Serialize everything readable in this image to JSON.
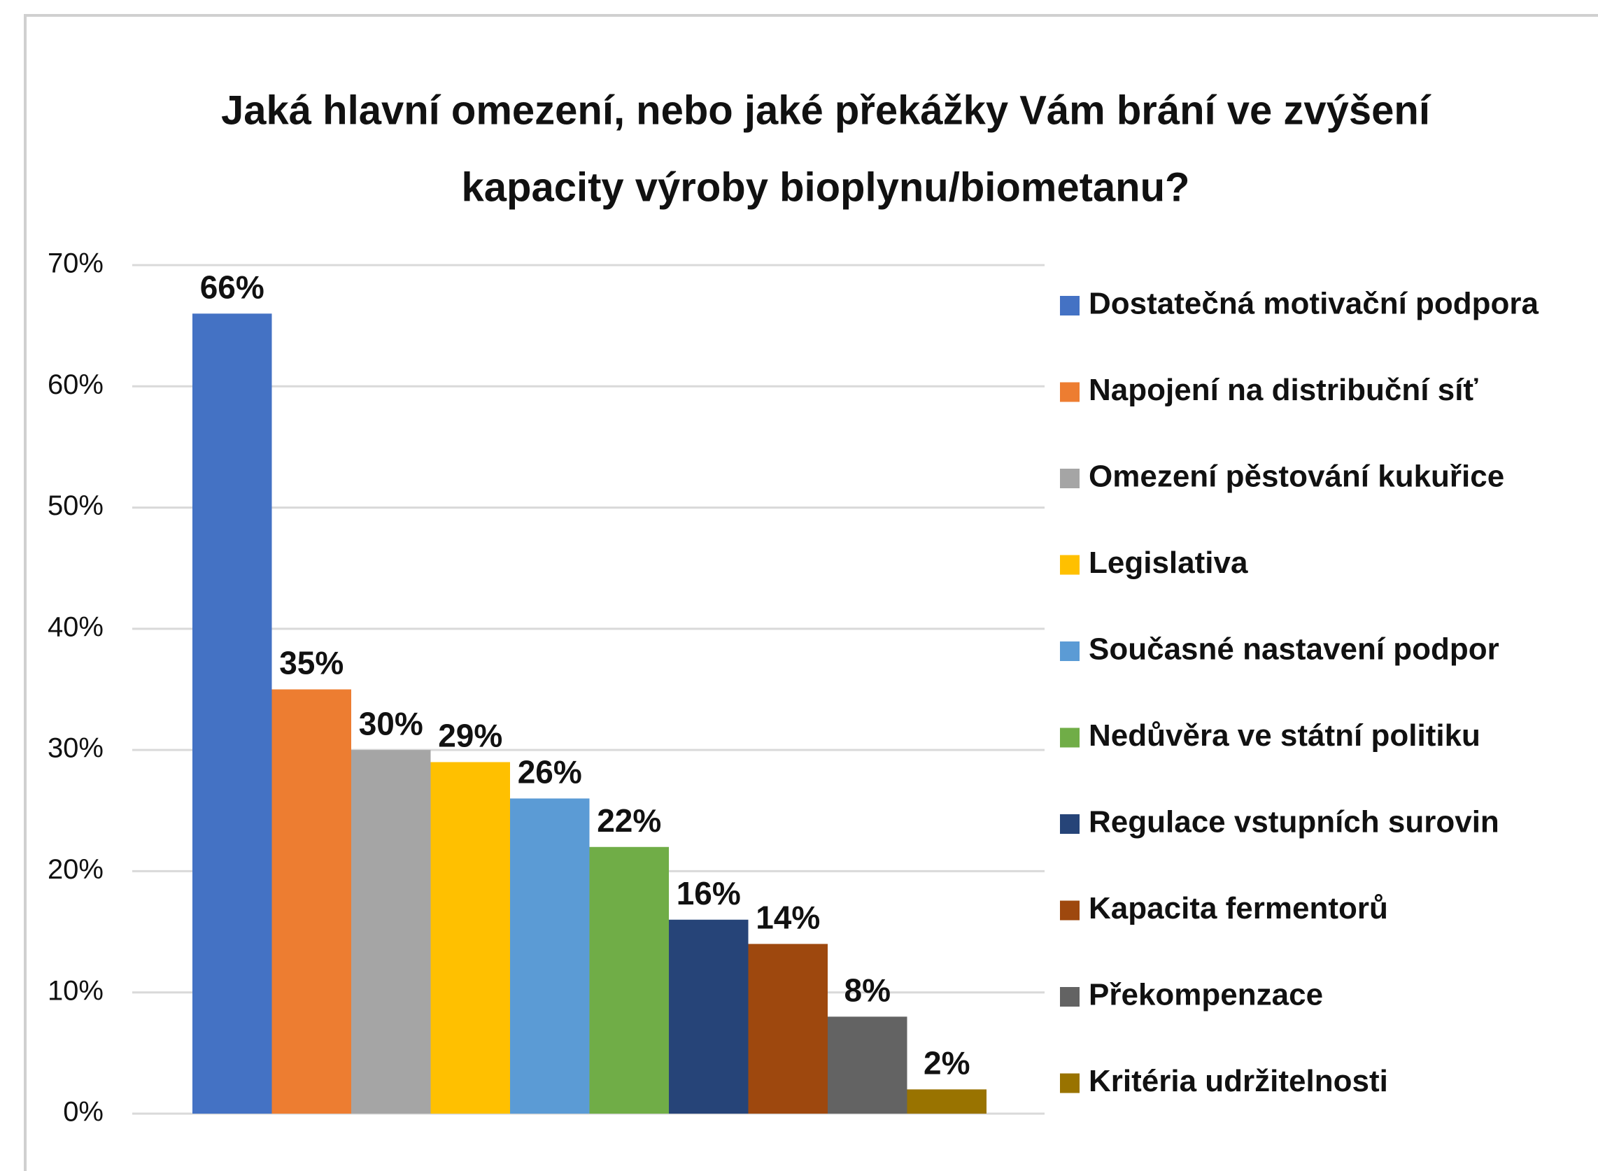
{
  "chart_data": {
    "type": "bar",
    "title": [
      "Jaká hlavní omezení, nebo jaké překážky Vám brání ve zvýšení",
      "kapacity výroby bioplynu/biometanu?"
    ],
    "ylim": [
      0,
      70
    ],
    "yticks": [
      {
        "value": 0,
        "label": "0%"
      },
      {
        "value": 10,
        "label": "10%"
      },
      {
        "value": 20,
        "label": "20%"
      },
      {
        "value": 30,
        "label": "30%"
      },
      {
        "value": 40,
        "label": "40%"
      },
      {
        "value": 50,
        "label": "50%"
      },
      {
        "value": 60,
        "label": "60%"
      },
      {
        "value": 70,
        "label": "70%"
      }
    ],
    "grid": true,
    "legend": "right",
    "series": [
      {
        "name": "Dostatečná motivační podpora",
        "color": "#4472c4",
        "values": [
          66
        ],
        "value_labels": [
          "66%"
        ]
      },
      {
        "name": "Napojení na distribuční síť",
        "color": "#ed7d31",
        "values": [
          35
        ],
        "value_labels": [
          "35%"
        ]
      },
      {
        "name": "Omezení pěstování kukuřice",
        "color": "#a5a5a5",
        "values": [
          30
        ],
        "value_labels": [
          "30%"
        ]
      },
      {
        "name": "Legislativa",
        "color": "#ffc000",
        "values": [
          29
        ],
        "value_labels": [
          "29%"
        ]
      },
      {
        "name": "Současné nastavení podpor",
        "color": "#5b9bd5",
        "values": [
          26
        ],
        "value_labels": [
          "26%"
        ]
      },
      {
        "name": "Nedůvěra ve státní politiku",
        "color": "#70ad47",
        "values": [
          22
        ],
        "value_labels": [
          "22%"
        ]
      },
      {
        "name": "Regulace vstupních surovin",
        "color": "#264478",
        "values": [
          16
        ],
        "value_labels": [
          "16%"
        ]
      },
      {
        "name": "Kapacita fermentorů",
        "color": "#9e480e",
        "values": [
          14
        ],
        "value_labels": [
          "14%"
        ]
      },
      {
        "name": "Překompenzace",
        "color": "#636363",
        "values": [
          8
        ],
        "value_labels": [
          "8%"
        ]
      },
      {
        "name": "Kritéria udržitelnosti",
        "color": "#997300",
        "values": [
          2
        ],
        "value_labels": [
          "2%"
        ]
      }
    ]
  }
}
